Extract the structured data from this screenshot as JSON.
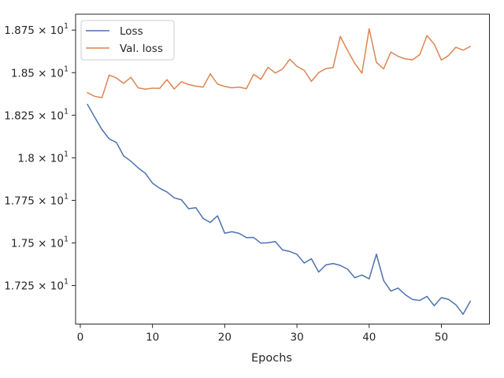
{
  "chart_data": {
    "type": "line",
    "title": "",
    "xlabel": "Epochs",
    "ylabel": "",
    "xlim": [
      -0.65,
      56.65
    ],
    "ylim": [
      17.0235,
      18.8435
    ],
    "xticks": [
      0,
      10,
      20,
      30,
      40,
      50
    ],
    "xtick_labels": [
      "0",
      "10",
      "20",
      "30",
      "40",
      "50"
    ],
    "yticks": [
      17.25,
      17.5,
      17.75,
      18.0,
      18.25,
      18.5,
      18.75
    ],
    "ytick_labels": [
      "1.725 × 10",
      "1.75 × 10",
      "1.775 × 10",
      "1.8 × 10",
      "1.825 × 10",
      "1.85 × 10",
      "1.875 × 10"
    ],
    "ytick_exponent": "1",
    "grid": false,
    "legend_position": "top-left",
    "x": [
      1,
      2,
      3,
      4,
      5,
      6,
      7,
      8,
      9,
      10,
      11,
      12,
      13,
      14,
      15,
      16,
      17,
      18,
      19,
      20,
      21,
      22,
      23,
      24,
      25,
      26,
      27,
      28,
      29,
      30,
      31,
      32,
      33,
      34,
      35,
      36,
      37,
      38,
      39,
      40,
      41,
      42,
      43,
      44,
      45,
      46,
      47,
      48,
      49,
      50,
      51,
      52,
      53,
      54
    ],
    "series": [
      {
        "name": "Loss",
        "color": "#4c72b0",
        "values": [
          18.313,
          18.238,
          18.166,
          18.111,
          18.09,
          18.011,
          17.98,
          17.941,
          17.909,
          17.851,
          17.821,
          17.799,
          17.765,
          17.753,
          17.701,
          17.707,
          17.644,
          17.62,
          17.659,
          17.557,
          17.566,
          17.556,
          17.531,
          17.532,
          17.499,
          17.501,
          17.508,
          17.459,
          17.45,
          17.433,
          17.382,
          17.407,
          17.329,
          17.371,
          17.379,
          17.368,
          17.346,
          17.296,
          17.311,
          17.289,
          17.434,
          17.279,
          17.217,
          17.235,
          17.196,
          17.168,
          17.162,
          17.186,
          17.131,
          17.179,
          17.168,
          17.137,
          17.081,
          17.157
        ]
      },
      {
        "name": "Val. loss",
        "color": "#dd8452",
        "values": [
          18.382,
          18.361,
          18.353,
          18.486,
          18.469,
          18.437,
          18.473,
          18.411,
          18.403,
          18.409,
          18.408,
          18.459,
          18.404,
          18.447,
          18.43,
          18.421,
          18.415,
          18.493,
          18.433,
          18.419,
          18.411,
          18.415,
          18.406,
          18.49,
          18.461,
          18.531,
          18.498,
          18.521,
          18.579,
          18.537,
          18.514,
          18.449,
          18.5,
          18.524,
          18.53,
          18.713,
          18.631,
          18.555,
          18.497,
          18.758,
          18.561,
          18.522,
          18.621,
          18.596,
          18.581,
          18.575,
          18.606,
          18.718,
          18.668,
          18.574,
          18.601,
          18.649,
          18.632,
          18.654
        ]
      }
    ]
  }
}
